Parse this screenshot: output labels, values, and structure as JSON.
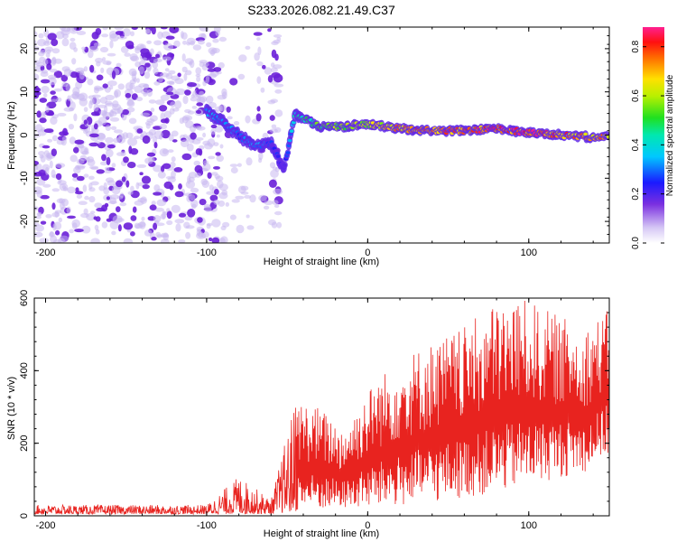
{
  "title": "S233.2026.082.21.49.C37",
  "colors": {
    "signal_line": "#e8231f",
    "speckle_light": "#c9b8f0",
    "speckle_dark": "#6a1fd8",
    "background": "#ffffff"
  },
  "chart_data": [
    {
      "type": "heatmap",
      "panel": "top",
      "title": "S233.2026.082.21.49.C37",
      "xlabel": "Height of straight line (km)",
      "ylabel": "Frequency (Hz)",
      "xlim": [
        -207,
        150
      ],
      "ylim": [
        -25,
        25
      ],
      "xticks": [
        -200,
        -100,
        0,
        100
      ],
      "xtick_labels": [
        "-200",
        "-100",
        "0",
        "100"
      ],
      "yticks": [
        -20,
        -10,
        0,
        10,
        20
      ],
      "ytick_labels": [
        "-20",
        "-10",
        "0",
        "10",
        "20"
      ],
      "colorbar": {
        "label": "Normalized spectral amplitude",
        "range": [
          0.0,
          0.88
        ],
        "ticks": [
          0.0,
          0.2,
          0.4,
          0.6,
          0.8
        ],
        "tick_labels": [
          "0.0",
          "0.2",
          "0.4",
          "0.6",
          "0.8"
        ],
        "colormap": "rainbow"
      },
      "features": {
        "noise_region_x": [
          -207,
          -55
        ],
        "noise_gap_x": [
          -88,
          -60
        ],
        "signal_band": [
          {
            "x": -100,
            "freq": 5.5,
            "amp": 0.35
          },
          {
            "x": -90,
            "freq": 3.0,
            "amp": 0.35
          },
          {
            "x": -80,
            "freq": 0.0,
            "amp": 0.3
          },
          {
            "x": -70,
            "freq": -2.5,
            "amp": 0.35
          },
          {
            "x": -60,
            "freq": -2.0,
            "amp": 0.3
          },
          {
            "x": -52,
            "freq": -8.0,
            "amp": 0.2
          },
          {
            "x": -45,
            "freq": 5.0,
            "amp": 0.45
          },
          {
            "x": -30,
            "freq": 2.0,
            "amp": 0.55
          },
          {
            "x": -15,
            "freq": 2.0,
            "amp": 0.6
          },
          {
            "x": 0,
            "freq": 2.5,
            "amp": 0.65
          },
          {
            "x": 20,
            "freq": 1.5,
            "amp": 0.75
          },
          {
            "x": 40,
            "freq": 1.0,
            "amp": 0.8
          },
          {
            "x": 60,
            "freq": 1.0,
            "amp": 0.8
          },
          {
            "x": 80,
            "freq": 1.5,
            "amp": 0.85
          },
          {
            "x": 100,
            "freq": 0.5,
            "amp": 0.85
          },
          {
            "x": 120,
            "freq": 0.0,
            "amp": 0.8
          },
          {
            "x": 140,
            "freq": -0.5,
            "amp": 0.75
          }
        ]
      }
    },
    {
      "type": "line",
      "panel": "bottom",
      "xlabel": "Height of straight line (km)",
      "ylabel": "SNR (10 * v/v)",
      "xlim": [
        -207,
        150
      ],
      "ylim": [
        0,
        600
      ],
      "xticks": [
        -200,
        -100,
        0,
        100
      ],
      "xtick_labels": [
        "-200",
        "-100",
        "0",
        "100"
      ],
      "yticks": [
        0,
        200,
        400,
        600
      ],
      "ytick_labels": [
        "0",
        "200",
        "400",
        "600"
      ],
      "series": [
        {
          "name": "SNR",
          "envelope": [
            {
              "x": -207,
              "floor": 5,
              "peak": 30
            },
            {
              "x": -100,
              "floor": 5,
              "peak": 30
            },
            {
              "x": -80,
              "floor": 5,
              "peak": 110
            },
            {
              "x": -60,
              "floor": 5,
              "peak": 45
            },
            {
              "x": -45,
              "floor": 10,
              "peak": 320
            },
            {
              "x": -30,
              "floor": 15,
              "peak": 300
            },
            {
              "x": -15,
              "floor": 20,
              "peak": 240
            },
            {
              "x": 5,
              "floor": 20,
              "peak": 380
            },
            {
              "x": 30,
              "floor": 30,
              "peak": 460
            },
            {
              "x": 60,
              "floor": 50,
              "peak": 520
            },
            {
              "x": 80,
              "floor": 60,
              "peak": 590
            },
            {
              "x": 95,
              "floor": 80,
              "peak": 600
            },
            {
              "x": 115,
              "floor": 100,
              "peak": 560
            },
            {
              "x": 135,
              "floor": 120,
              "peak": 520
            },
            {
              "x": 150,
              "floor": 170,
              "peak": 570
            }
          ]
        }
      ]
    }
  ]
}
